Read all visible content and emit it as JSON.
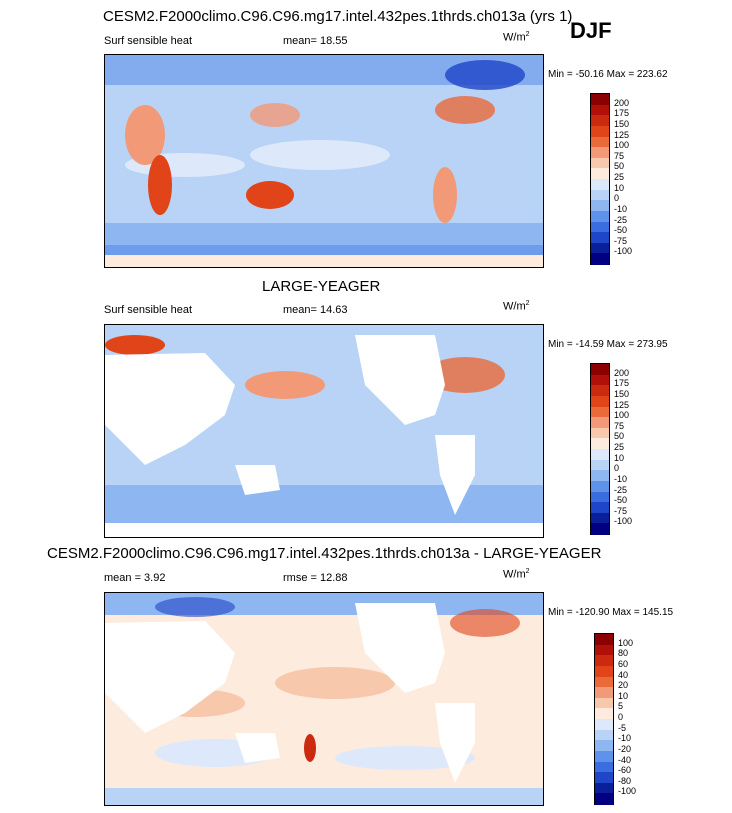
{
  "season": "DJF",
  "panels": [
    {
      "title": "CESM2.F2000climo.C96.C96.mg17.intel.432pes.1thrds.ch013a (yrs 1)",
      "left_label": "Surf sensible heat",
      "center_label": "mean=  18.55",
      "units": "W/m",
      "units_sup": "2",
      "minmax": "Min = -50.16 Max = 223.62",
      "levels": [
        "200",
        "175",
        "150",
        "125",
        "100",
        "75",
        "50",
        "25",
        "10",
        "0",
        "-10",
        "-25",
        "-50",
        "-75",
        "-100"
      ]
    },
    {
      "title": "LARGE-YEAGER",
      "left_label": "Surf sensible heat",
      "center_label": "mean=  14.63",
      "units": "W/m",
      "units_sup": "2",
      "minmax": "Min = -14.59 Max = 273.95",
      "levels": [
        "200",
        "175",
        "150",
        "125",
        "100",
        "75",
        "50",
        "25",
        "10",
        "0",
        "-10",
        "-25",
        "-50",
        "-75",
        "-100"
      ]
    },
    {
      "title": "CESM2.F2000climo.C96.C96.mg17.intel.432pes.1thrds.ch013a - LARGE-YEAGER",
      "left_label": "mean =   3.92",
      "center_label": "rmse =  12.88",
      "units": "W/m",
      "units_sup": "2",
      "minmax": "Min = -120.90 Max = 145.15",
      "levels": [
        "100",
        "80",
        "60",
        "40",
        "20",
        "10",
        "5",
        "0",
        "-5",
        "-10",
        "-20",
        "-40",
        "-60",
        "-80",
        "-100"
      ]
    }
  ],
  "colors": {
    "scale": [
      "#8b0000",
      "#b01008",
      "#cc2a10",
      "#e04418",
      "#ea6a3a",
      "#f29a78",
      "#f8c8ac",
      "#fdebdd",
      "#dde9fb",
      "#b8d3f5",
      "#8eb6f0",
      "#5f92ea",
      "#3a6ddf",
      "#1f45c8",
      "#0a1f9a",
      "#000080"
    ]
  }
}
